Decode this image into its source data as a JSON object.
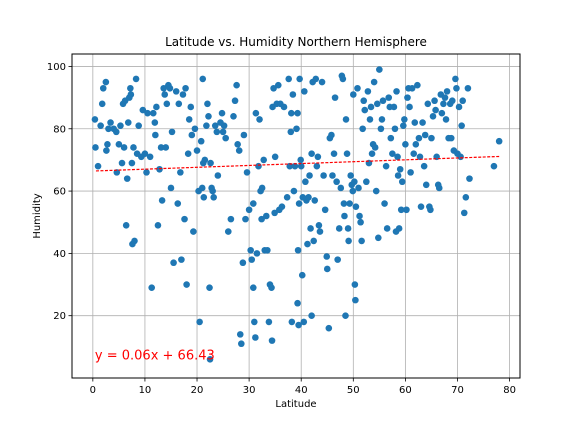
{
  "chart_data": {
    "type": "scatter",
    "title": "Latitude vs. Humidity Northern Hemisphere",
    "xlabel": "Latitude",
    "ylabel": "Humidity",
    "xlim": [
      -4,
      82
    ],
    "ylim": [
      0,
      104
    ],
    "xticks": [
      0,
      10,
      20,
      30,
      40,
      50,
      60,
      70,
      80
    ],
    "yticks": [
      20,
      40,
      60,
      80,
      100
    ],
    "grid": true,
    "point_color": "#1f77b4",
    "regression": {
      "slope": 0.06,
      "intercept": 66.43,
      "x_start": 0.6,
      "x_end": 78,
      "color": "#ff0000",
      "label": "y = 0.06x + 66.43",
      "label_x": 0.4,
      "label_y": 6
    },
    "points": [
      [
        0.4,
        83
      ],
      [
        0.5,
        74
      ],
      [
        1,
        68
      ],
      [
        1.5,
        81
      ],
      [
        1.8,
        88
      ],
      [
        2,
        93
      ],
      [
        2.5,
        95
      ],
      [
        2.8,
        75
      ],
      [
        2.6,
        73
      ],
      [
        3,
        80
      ],
      [
        3.4,
        82
      ],
      [
        4,
        80
      ],
      [
        4.5,
        79
      ],
      [
        4.6,
        66
      ],
      [
        5,
        75
      ],
      [
        5.3,
        81
      ],
      [
        5.6,
        69
      ],
      [
        5.8,
        88
      ],
      [
        6,
        74
      ],
      [
        6.2,
        89
      ],
      [
        6.4,
        49
      ],
      [
        6.6,
        64
      ],
      [
        6.8,
        82
      ],
      [
        7,
        90
      ],
      [
        7.2,
        93
      ],
      [
        7.3,
        91
      ],
      [
        7.5,
        69
      ],
      [
        7.6,
        43
      ],
      [
        7.8,
        74
      ],
      [
        8,
        44
      ],
      [
        8.3,
        96
      ],
      [
        8.5,
        72
      ],
      [
        8.8,
        81
      ],
      [
        9.3,
        71
      ],
      [
        9.6,
        86
      ],
      [
        10,
        72
      ],
      [
        10.3,
        66
      ],
      [
        10.5,
        85
      ],
      [
        11,
        71
      ],
      [
        11.3,
        29
      ],
      [
        11.6,
        85
      ],
      [
        11.9,
        82
      ],
      [
        12,
        78
      ],
      [
        12.2,
        87
      ],
      [
        12.5,
        49
      ],
      [
        12.8,
        67
      ],
      [
        13.1,
        74
      ],
      [
        13.3,
        57
      ],
      [
        13.6,
        93
      ],
      [
        13.8,
        91
      ],
      [
        14,
        74
      ],
      [
        14.2,
        88
      ],
      [
        14.5,
        94
      ],
      [
        14.8,
        93
      ],
      [
        15,
        61
      ],
      [
        15.2,
        79
      ],
      [
        15.5,
        37
      ],
      [
        16,
        92
      ],
      [
        16.3,
        56
      ],
      [
        16.5,
        88
      ],
      [
        16.8,
        66
      ],
      [
        17,
        38
      ],
      [
        17.3,
        91
      ],
      [
        17.6,
        51
      ],
      [
        17.8,
        93
      ],
      [
        18,
        30
      ],
      [
        18.3,
        72
      ],
      [
        18.5,
        83
      ],
      [
        18.8,
        87
      ],
      [
        19,
        78
      ],
      [
        19.3,
        47
      ],
      [
        19.6,
        80
      ],
      [
        20,
        73
      ],
      [
        20.3,
        60
      ],
      [
        20.5,
        18
      ],
      [
        20.8,
        76
      ],
      [
        21,
        61
      ],
      [
        21.1,
        96
      ],
      [
        21.2,
        69
      ],
      [
        21.3,
        58
      ],
      [
        21.5,
        70
      ],
      [
        21.8,
        81
      ],
      [
        22,
        88
      ],
      [
        22.2,
        84
      ],
      [
        22.4,
        29
      ],
      [
        22.5,
        6
      ],
      [
        22.6,
        69
      ],
      [
        22.8,
        61
      ],
      [
        23,
        60
      ],
      [
        23.2,
        58
      ],
      [
        23.5,
        81
      ],
      [
        23.8,
        79
      ],
      [
        24,
        65
      ],
      [
        24.5,
        82
      ],
      [
        24.8,
        85
      ],
      [
        25,
        79
      ],
      [
        25.2,
        81
      ],
      [
        25.5,
        77
      ],
      [
        26,
        47
      ],
      [
        26.5,
        51
      ],
      [
        27,
        84
      ],
      [
        27.3,
        89
      ],
      [
        27.6,
        94
      ],
      [
        27.8,
        75
      ],
      [
        28.1,
        73
      ],
      [
        28.3,
        14
      ],
      [
        28.5,
        11
      ],
      [
        28.8,
        37
      ],
      [
        29,
        78
      ],
      [
        29.3,
        51
      ],
      [
        29.6,
        66
      ],
      [
        30,
        54
      ],
      [
        30.3,
        41
      ],
      [
        30.5,
        38
      ],
      [
        30.8,
        56
      ],
      [
        30.8,
        29
      ],
      [
        31,
        18
      ],
      [
        31.2,
        13
      ],
      [
        31.3,
        85
      ],
      [
        31.5,
        40
      ],
      [
        31.8,
        68
      ],
      [
        32,
        83
      ],
      [
        32.2,
        60
      ],
      [
        32.4,
        51
      ],
      [
        32.5,
        61
      ],
      [
        32.8,
        70
      ],
      [
        33,
        41
      ],
      [
        33.3,
        52
      ],
      [
        33.5,
        41
      ],
      [
        33.8,
        18
      ],
      [
        34,
        30
      ],
      [
        34.3,
        29
      ],
      [
        34.4,
        12
      ],
      [
        34.5,
        87
      ],
      [
        34.7,
        93
      ],
      [
        34.9,
        53
      ],
      [
        35,
        71
      ],
      [
        35.3,
        88
      ],
      [
        35.6,
        94
      ],
      [
        35.8,
        54
      ],
      [
        36,
        88
      ],
      [
        36.3,
        55
      ],
      [
        36.7,
        87
      ],
      [
        37.3,
        58
      ],
      [
        37.6,
        96
      ],
      [
        37.8,
        68
      ],
      [
        38,
        79
      ],
      [
        38.1,
        85
      ],
      [
        38.2,
        18
      ],
      [
        38.4,
        91
      ],
      [
        38.6,
        60
      ],
      [
        38.8,
        68
      ],
      [
        39.1,
        80
      ],
      [
        39.3,
        85
      ],
      [
        39.3,
        24
      ],
      [
        39.4,
        41
      ],
      [
        39.5,
        17
      ],
      [
        39.6,
        56
      ],
      [
        39.7,
        96
      ],
      [
        39.9,
        70
      ],
      [
        40,
        68
      ],
      [
        40.2,
        33
      ],
      [
        40.3,
        58
      ],
      [
        40.5,
        18
      ],
      [
        40.6,
        92
      ],
      [
        40.8,
        63
      ],
      [
        41,
        57
      ],
      [
        41.2,
        43
      ],
      [
        41.4,
        58
      ],
      [
        41.6,
        65
      ],
      [
        41.8,
        48
      ],
      [
        42,
        20
      ],
      [
        42,
        72
      ],
      [
        42.2,
        95
      ],
      [
        42.4,
        44
      ],
      [
        42.6,
        57
      ],
      [
        42.8,
        96
      ],
      [
        43,
        68
      ],
      [
        43.2,
        71
      ],
      [
        43.4,
        49
      ],
      [
        43.6,
        47
      ],
      [
        44,
        95
      ],
      [
        44.3,
        65
      ],
      [
        44.6,
        54
      ],
      [
        44.9,
        39
      ],
      [
        45,
        35
      ],
      [
        45.3,
        16
      ],
      [
        45.5,
        77
      ],
      [
        45.8,
        78
      ],
      [
        46,
        65
      ],
      [
        46.3,
        72
      ],
      [
        46.5,
        90
      ],
      [
        46.8,
        63
      ],
      [
        47,
        38
      ],
      [
        47.3,
        48
      ],
      [
        47.6,
        61
      ],
      [
        47.8,
        97
      ],
      [
        48,
        96
      ],
      [
        48.2,
        56
      ],
      [
        48.3,
        52
      ],
      [
        48.5,
        20
      ],
      [
        48.6,
        83
      ],
      [
        48.8,
        72
      ],
      [
        49,
        48
      ],
      [
        49.1,
        44
      ],
      [
        49.3,
        56
      ],
      [
        49.5,
        65
      ],
      [
        49.7,
        62
      ],
      [
        49.9,
        60
      ],
      [
        50,
        91
      ],
      [
        50.2,
        63
      ],
      [
        50.3,
        30
      ],
      [
        50.4,
        25
      ],
      [
        50.5,
        55
      ],
      [
        50.8,
        93
      ],
      [
        51,
        61
      ],
      [
        51.2,
        52
      ],
      [
        51.4,
        50
      ],
      [
        51.6,
        44
      ],
      [
        51.8,
        80
      ],
      [
        52,
        89
      ],
      [
        52.2,
        86
      ],
      [
        52.5,
        63
      ],
      [
        52.8,
        92
      ],
      [
        53,
        69
      ],
      [
        53.2,
        83
      ],
      [
        53.4,
        87
      ],
      [
        53.6,
        72
      ],
      [
        53.8,
        75
      ],
      [
        54,
        95
      ],
      [
        54.2,
        74
      ],
      [
        54.4,
        60
      ],
      [
        54.6,
        88
      ],
      [
        54.8,
        45
      ],
      [
        55,
        99
      ],
      [
        55.3,
        80
      ],
      [
        55.5,
        83
      ],
      [
        55.7,
        89
      ],
      [
        56,
        56
      ],
      [
        56.3,
        68
      ],
      [
        56.5,
        48
      ],
      [
        56.8,
        90
      ],
      [
        57,
        87
      ],
      [
        57.2,
        77
      ],
      [
        57.5,
        72
      ],
      [
        57.8,
        87
      ],
      [
        58,
        80
      ],
      [
        58.2,
        47
      ],
      [
        58.3,
        92
      ],
      [
        58.5,
        71
      ],
      [
        58.6,
        65
      ],
      [
        58.8,
        48
      ],
      [
        59,
        67
      ],
      [
        59.2,
        54
      ],
      [
        59.4,
        63
      ],
      [
        59.6,
        81
      ],
      [
        59.8,
        83
      ],
      [
        60,
        75
      ],
      [
        60.2,
        54
      ],
      [
        60.4,
        90
      ],
      [
        60.6,
        93
      ],
      [
        60.8,
        87
      ],
      [
        61,
        66
      ],
      [
        61.3,
        93
      ],
      [
        61.6,
        72
      ],
      [
        61.8,
        82
      ],
      [
        62,
        75
      ],
      [
        62.3,
        94
      ],
      [
        62.6,
        77
      ],
      [
        62.8,
        71
      ],
      [
        63,
        55
      ],
      [
        63.3,
        82
      ],
      [
        63.6,
        68
      ],
      [
        63.8,
        78
      ],
      [
        64,
        62
      ],
      [
        64.3,
        88
      ],
      [
        64.6,
        55
      ],
      [
        64.8,
        54
      ],
      [
        65,
        77
      ],
      [
        65.3,
        84
      ],
      [
        65.6,
        89
      ],
      [
        65.8,
        86
      ],
      [
        66,
        71
      ],
      [
        66.3,
        62
      ],
      [
        66.5,
        61
      ],
      [
        66.8,
        91
      ],
      [
        67,
        85
      ],
      [
        67.3,
        88
      ],
      [
        67.6,
        90
      ],
      [
        67.8,
        83
      ],
      [
        68,
        92
      ],
      [
        68.3,
        77
      ],
      [
        68.6,
        88
      ],
      [
        68.8,
        77
      ],
      [
        69,
        89
      ],
      [
        69.3,
        73
      ],
      [
        69.6,
        96
      ],
      [
        69.8,
        93
      ],
      [
        70,
        72
      ],
      [
        70.3,
        87
      ],
      [
        70.6,
        71
      ],
      [
        70.8,
        81
      ],
      [
        71,
        89
      ],
      [
        71.3,
        53
      ],
      [
        71.6,
        58
      ],
      [
        72,
        93
      ],
      [
        72.3,
        64
      ],
      [
        77,
        68
      ],
      [
        78,
        76
      ]
    ]
  }
}
